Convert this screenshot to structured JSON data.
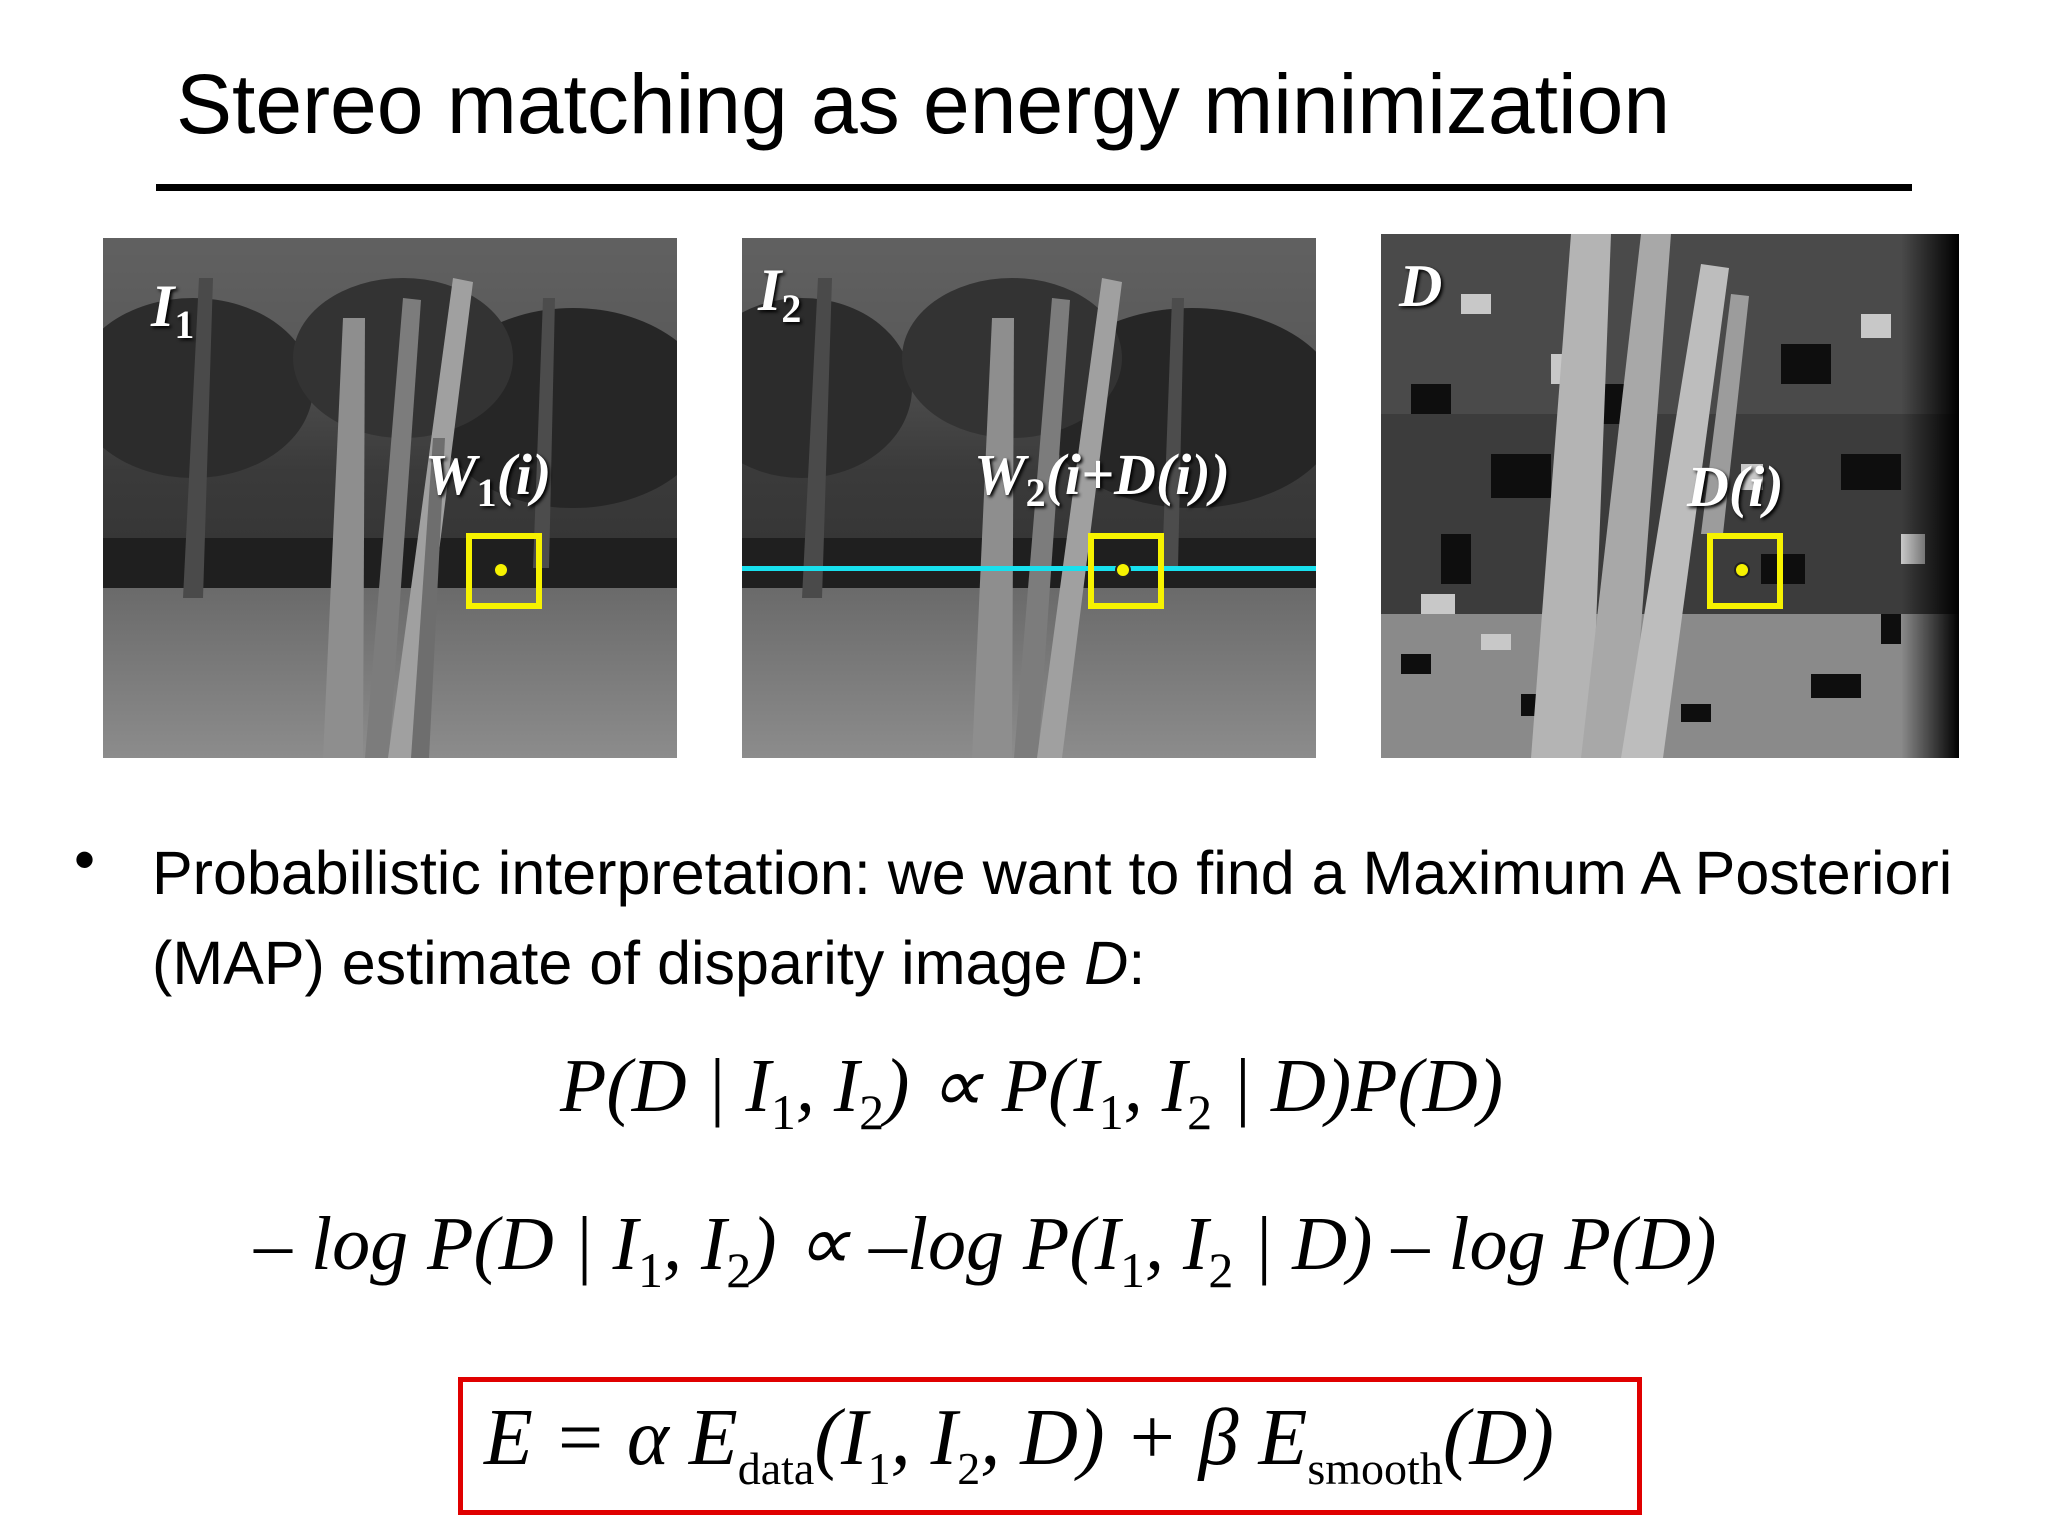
{
  "title": "Stereo matching as energy minimization",
  "images": {
    "left": {
      "label": "I",
      "label_sub": "1",
      "window": {
        "a": "W",
        "sub": "1",
        "b": "(i)"
      }
    },
    "right": {
      "label": "I",
      "label_sub": "2",
      "window": {
        "a": "W",
        "sub": "2",
        "b": "(i+D(i))"
      }
    },
    "disparity": {
      "label": "D",
      "window": {
        "a": "D(i)"
      }
    }
  },
  "colors": {
    "window_box": "#f6f200",
    "scanline": "#18e0ee",
    "equation_box": "#e00000"
  },
  "bullet": {
    "marker": "•",
    "text_before": "Probabilistic interpretation: we want to find a Maximum A Posteriori (MAP) estimate of disparity image ",
    "italic": "D",
    "text_after": ":"
  },
  "equations": {
    "eq1": [
      "P(D | I",
      "1",
      ", I",
      "2",
      ") ∝ P(I",
      "1",
      ", I",
      "2",
      " | D)P(D)"
    ],
    "eq2": [
      "– log P(D | I",
      "1",
      ", I",
      "2",
      ") ∝ –log P(I",
      "1",
      ", I",
      "2",
      " | D) – log P(D)"
    ],
    "eq3": [
      "E = α E",
      "data",
      "(I",
      "1",
      ", I",
      "2",
      ", D) + β E",
      "smooth",
      "(D)"
    ]
  }
}
